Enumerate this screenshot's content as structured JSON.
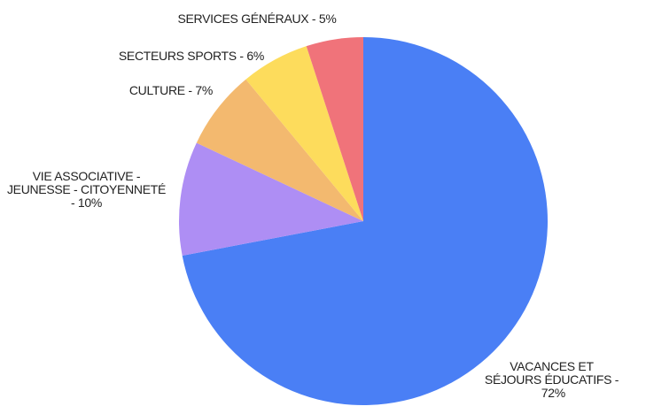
{
  "chart_data": {
    "type": "pie",
    "categories": [
      "VACANCES ET SÉJOURS ÉDUCATIFS -",
      "VIE ASSOCIATIVE - JEUNESSE - CITOYENNETÉ -",
      "CULTURE -",
      "SECTEURS SPORTS -",
      "SERVICES GÉNÉRAUX -"
    ],
    "values": [
      72,
      10,
      7,
      6,
      5
    ],
    "value_labels": [
      "72%",
      "10%",
      "7%",
      "6%",
      "5%"
    ],
    "colors": [
      "#4a7ff5",
      "#ae8ef4",
      "#f3b96f",
      "#fddc5c",
      "#f0737a"
    ]
  }
}
